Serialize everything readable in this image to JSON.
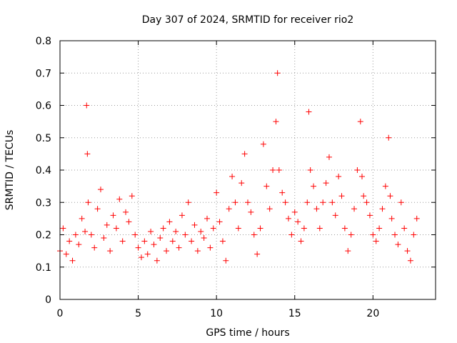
{
  "chart_data": {
    "type": "scatter",
    "title": "Day 307 of 2024, SRMTID for receiver rio2",
    "xlabel": "GPS time / hours",
    "ylabel": "SRMTID / TECUs",
    "xlim": [
      0,
      24
    ],
    "ylim": [
      0,
      0.8
    ],
    "xticks": [
      0,
      5,
      10,
      15,
      20
    ],
    "xtick_labels": [
      "0",
      "5",
      "10",
      "15",
      "20"
    ],
    "yticks": [
      0,
      0.1,
      0.2,
      0.3,
      0.4,
      0.5,
      0.6,
      0.7,
      0.8
    ],
    "ytick_labels": [
      "0",
      "0.1",
      "0.2",
      "0.3",
      "0.4",
      "0.5",
      "0.6",
      "0.7",
      "0.8"
    ],
    "grid": true,
    "marker": "+",
    "series": [
      {
        "name": "SRMTID",
        "color": "#ff0000",
        "x": [
          0.0,
          0.2,
          0.4,
          0.6,
          0.8,
          1.0,
          1.2,
          1.4,
          1.6,
          1.7,
          1.75,
          1.8,
          2.0,
          2.2,
          2.4,
          2.6,
          2.8,
          3.0,
          3.2,
          3.4,
          3.6,
          3.8,
          4.0,
          4.2,
          4.4,
          4.6,
          4.8,
          5.0,
          5.2,
          5.4,
          5.6,
          5.8,
          6.0,
          6.2,
          6.4,
          6.6,
          6.8,
          7.0,
          7.2,
          7.4,
          7.6,
          7.8,
          8.0,
          8.2,
          8.4,
          8.6,
          8.8,
          9.0,
          9.2,
          9.4,
          9.6,
          9.8,
          10.0,
          10.2,
          10.4,
          10.6,
          10.8,
          11.0,
          11.2,
          11.4,
          11.6,
          11.8,
          12.0,
          12.2,
          12.4,
          12.6,
          12.8,
          13.0,
          13.2,
          13.4,
          13.6,
          13.8,
          13.9,
          14.0,
          14.2,
          14.4,
          14.6,
          14.8,
          15.0,
          15.2,
          15.4,
          15.6,
          15.8,
          15.9,
          16.0,
          16.2,
          16.4,
          16.6,
          16.8,
          17.0,
          17.2,
          17.4,
          17.6,
          17.8,
          18.0,
          18.2,
          18.4,
          18.6,
          18.8,
          19.0,
          19.2,
          19.3,
          19.4,
          19.6,
          19.8,
          20.0,
          20.2,
          20.4,
          20.6,
          20.8,
          21.0,
          21.1,
          21.2,
          21.4,
          21.6,
          21.8,
          22.0,
          22.2,
          22.4,
          22.6,
          22.8
        ],
        "y": [
          0.15,
          0.22,
          0.14,
          0.18,
          0.12,
          0.2,
          0.17,
          0.25,
          0.21,
          0.6,
          0.45,
          0.3,
          0.2,
          0.16,
          0.28,
          0.34,
          0.19,
          0.23,
          0.15,
          0.26,
          0.22,
          0.31,
          0.18,
          0.27,
          0.24,
          0.32,
          0.2,
          0.16,
          0.13,
          0.18,
          0.14,
          0.21,
          0.17,
          0.12,
          0.19,
          0.22,
          0.15,
          0.24,
          0.18,
          0.21,
          0.16,
          0.26,
          0.2,
          0.3,
          0.18,
          0.23,
          0.15,
          0.21,
          0.19,
          0.25,
          0.16,
          0.22,
          0.33,
          0.24,
          0.18,
          0.12,
          0.28,
          0.38,
          0.3,
          0.22,
          0.36,
          0.45,
          0.3,
          0.27,
          0.2,
          0.14,
          0.22,
          0.48,
          0.35,
          0.28,
          0.4,
          0.55,
          0.7,
          0.4,
          0.33,
          0.3,
          0.25,
          0.2,
          0.27,
          0.24,
          0.18,
          0.22,
          0.3,
          0.58,
          0.4,
          0.35,
          0.28,
          0.22,
          0.3,
          0.36,
          0.44,
          0.3,
          0.26,
          0.38,
          0.32,
          0.22,
          0.15,
          0.2,
          0.28,
          0.4,
          0.55,
          0.38,
          0.32,
          0.3,
          0.26,
          0.2,
          0.18,
          0.22,
          0.28,
          0.35,
          0.5,
          0.32,
          0.25,
          0.2,
          0.17,
          0.3,
          0.22,
          0.15,
          0.12,
          0.2,
          0.25
        ]
      }
    ]
  }
}
